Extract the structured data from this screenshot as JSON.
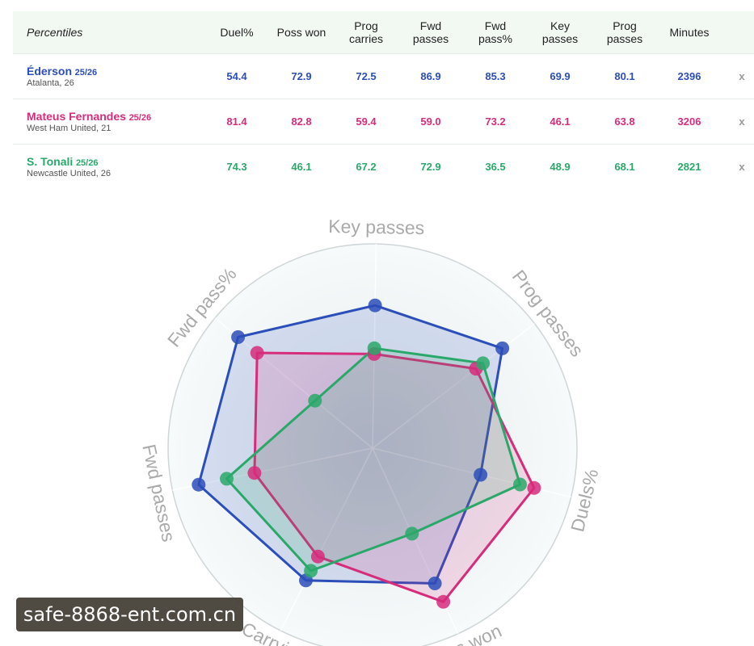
{
  "table": {
    "header_label": "Percentiles",
    "columns": [
      [
        "Duel%"
      ],
      [
        "Poss won"
      ],
      [
        "Prog",
        "carries"
      ],
      [
        "Fwd",
        "passes"
      ],
      [
        "Fwd",
        "pass%"
      ],
      [
        "Key",
        "passes"
      ],
      [
        "Prog",
        "passes"
      ],
      [
        "Minutes"
      ]
    ],
    "remove_label": "x"
  },
  "players": [
    {
      "name": "Éderson",
      "season": "25/26",
      "club": "Atalanta, 26",
      "color": "#2b4eb8",
      "values": [
        "54.4",
        "72.9",
        "72.5",
        "86.9",
        "85.3",
        "69.9",
        "80.1",
        "2396"
      ]
    },
    {
      "name": "Mateus Fernandes",
      "season": "25/26",
      "club": "West Ham United, 21",
      "color": "#d62c7b",
      "values": [
        "81.4",
        "82.8",
        "59.4",
        "59.0",
        "73.2",
        "46.1",
        "63.8",
        "3206"
      ]
    },
    {
      "name": "S. Tonali",
      "season": "25/26",
      "club": "Newcastle United, 26",
      "color": "#2aa86a",
      "values": [
        "74.3",
        "46.1",
        "67.2",
        "72.9",
        "36.5",
        "48.9",
        "68.1",
        "2821"
      ]
    }
  ],
  "chart_data": {
    "type": "radar",
    "axes": [
      "Key passes",
      "Prog passes",
      "Duels%",
      "Poss won",
      "Carrying",
      "Fwd passes",
      "Fwd pass%"
    ],
    "series": [
      {
        "name": "Éderson",
        "color": "#2b4eb8",
        "values": [
          69.9,
          80.1,
          54.4,
          72.9,
          72.5,
          86.9,
          85.3
        ]
      },
      {
        "name": "Mateus Fernandes",
        "color": "#d62c7b",
        "values": [
          46.1,
          63.8,
          81.4,
          82.8,
          59.4,
          59.0,
          73.2
        ]
      },
      {
        "name": "S. Tonali",
        "color": "#2aa86a",
        "values": [
          48.9,
          68.1,
          74.3,
          46.1,
          67.2,
          72.9,
          36.5
        ]
      }
    ],
    "range": [
      0,
      100
    ]
  },
  "watermark": "safe-8868-ent.com.cn"
}
